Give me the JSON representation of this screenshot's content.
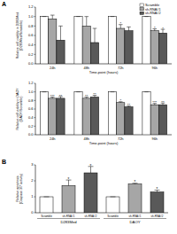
{
  "chart_data": [
    {
      "type": "bar",
      "panel": "A",
      "categories": [
        "24h",
        "48h",
        "72h",
        "96h"
      ],
      "x_label": "Time-point (hours)",
      "y_label": [
        "Relative cell viability in D283Med",
        "(D283Med/Scramble)"
      ],
      "ylim": [
        0,
        1.2
      ],
      "yticks": [
        {
          "value": 0,
          "label": "0.0"
        },
        {
          "value": 0.2,
          "label": "0.2"
        },
        {
          "value": 0.4,
          "label": "0.4"
        },
        {
          "value": 0.6,
          "label": "0.6"
        },
        {
          "value": 0.8,
          "label": "0.8"
        },
        {
          "value": 1,
          "label": "1.0"
        },
        {
          "value": 1.2,
          "label": "1.2"
        }
      ],
      "legend": "top-right",
      "series": [
        {
          "name": "Scramble",
          "color": "#ffffff",
          "values": [
            1,
            1,
            1,
            1
          ],
          "errors": [
            0,
            0,
            0,
            0
          ],
          "annotations": [
            null,
            null,
            null,
            null
          ]
        },
        {
          "name": "sh-RNA#1",
          "color": "#a6a6a6",
          "values": [
            0.95,
            0.8,
            0.75,
            0.7
          ],
          "errors": [
            0.08,
            0.2,
            0.08,
            0.04
          ],
          "annotations": [
            null,
            null,
            "*",
            "*"
          ]
        },
        {
          "name": "sh-RNA#2",
          "color": "#595959",
          "values": [
            0.5,
            0.45,
            0.7,
            0.65
          ],
          "errors": [
            0.3,
            0.3,
            0.08,
            0.08
          ],
          "annotations": [
            null,
            null,
            null,
            "*"
          ]
        }
      ]
    },
    {
      "type": "bar",
      "categories": [
        "24h",
        "48h",
        "72h",
        "96h"
      ],
      "x_label": "Time-point (hours)",
      "y_label": [
        "Relative cell viability in DAOY",
        "(DAOY/Scramble)"
      ],
      "ylim": [
        0,
        1.2
      ],
      "yticks": [
        {
          "value": 0,
          "label": "0.0"
        },
        {
          "value": 0.2,
          "label": "0.2"
        },
        {
          "value": 0.4,
          "label": "0.4"
        },
        {
          "value": 0.6,
          "label": "0.6"
        },
        {
          "value": 0.8,
          "label": "0.8"
        },
        {
          "value": 1,
          "label": "1.0"
        },
        {
          "value": 1.2,
          "label": "1.2"
        }
      ],
      "series": [
        {
          "color": "#ffffff",
          "values": [
            1,
            1,
            1,
            1
          ],
          "errors": [
            0,
            0,
            0,
            0
          ],
          "annotations": [
            null,
            null,
            null,
            null
          ]
        },
        {
          "color": "#a6a6a6",
          "values": [
            0.85,
            0.85,
            0.75,
            0.7
          ],
          "errors": [
            0.03,
            0.03,
            0.02,
            0.03
          ],
          "annotations": [
            "***",
            "**",
            "*",
            "***"
          ]
        },
        {
          "color": "#595959",
          "values": [
            0.85,
            0.88,
            0.65,
            0.7
          ],
          "errors": [
            0.04,
            0.04,
            0.02,
            0.04
          ],
          "annotations": [
            "**",
            "**",
            "**",
            "**"
          ]
        }
      ]
    },
    {
      "type": "bar",
      "panel": "B",
      "categories": [
        "Scramble",
        "sh-RNA#1",
        "sh-RNA#2",
        "Scramble",
        "sh-RNA#1",
        "sh-RNA#2"
      ],
      "group_labels": [
        "D283Med",
        "DAOY"
      ],
      "y_label": [
        "Relative apoptosis",
        "(Caspase 3/7 activity)"
      ],
      "ylim": [
        0,
        3
      ],
      "yticks": [
        0,
        1,
        2,
        3
      ],
      "values": [
        1,
        1.7,
        2.5,
        1,
        1.8,
        1.3
      ],
      "errors": [
        0,
        0.35,
        0.4,
        0,
        0.05,
        0.12
      ],
      "annotations": [
        null,
        "*",
        "*",
        null,
        "*",
        "*"
      ],
      "colors": [
        "#ffffff",
        "#a6a6a6",
        "#595959",
        "#ffffff",
        "#a6a6a6",
        "#595959"
      ]
    }
  ]
}
